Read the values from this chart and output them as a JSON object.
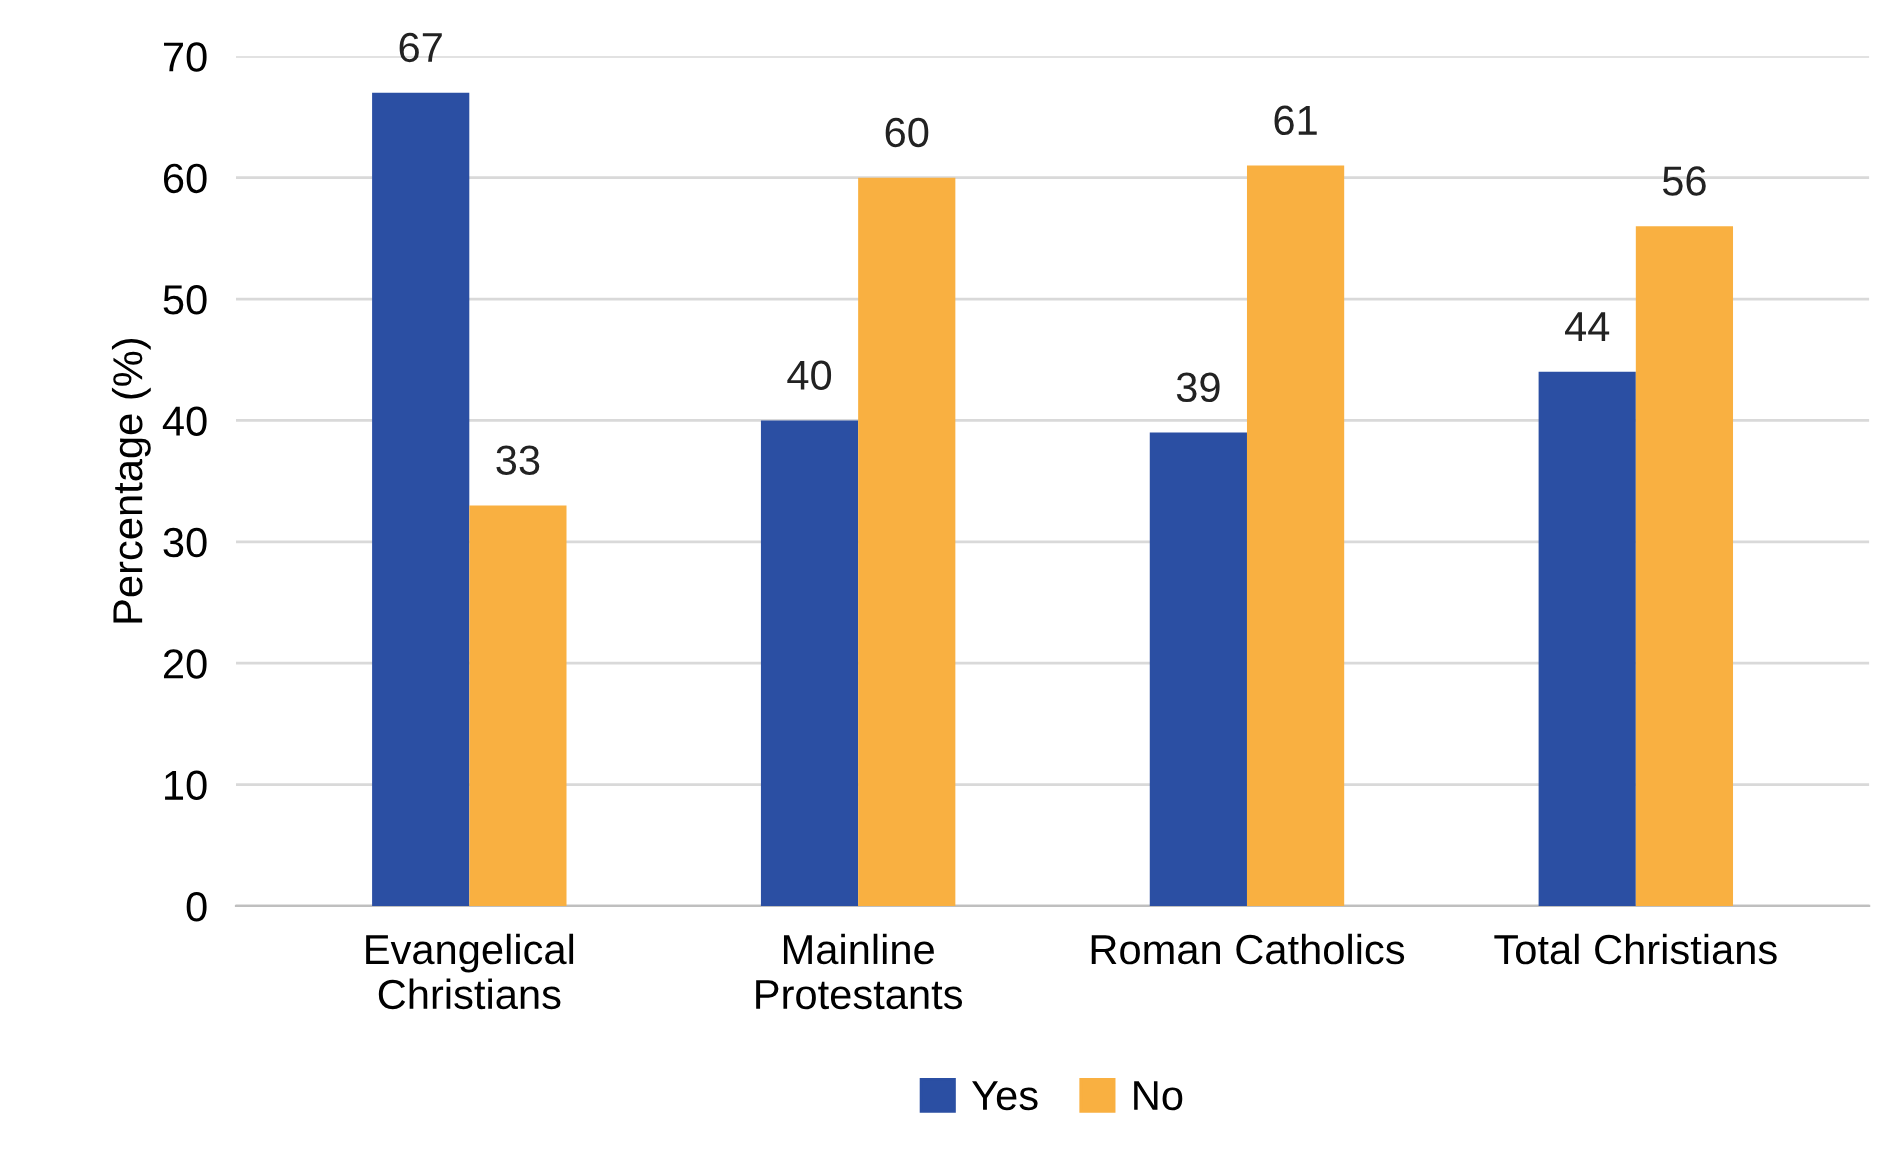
{
  "chart_data": {
    "type": "bar",
    "ylabel": "Percentage (%)",
    "categories": [
      "Evangelical\nChristians",
      "Mainline\nProtestants",
      "Roman Catholics",
      "Total Christians"
    ],
    "series": [
      {
        "name": "Yes",
        "color": "#2b4fa3",
        "values": [
          67,
          40,
          39,
          44
        ]
      },
      {
        "name": "No",
        "color": "#f9b041",
        "values": [
          33,
          60,
          61,
          56
        ]
      }
    ],
    "ylim": [
      0,
      70
    ],
    "yticks": [
      0,
      10,
      20,
      30,
      40,
      50,
      60,
      70
    ],
    "grid": "y",
    "legend": "bottom",
    "data_labels": true
  }
}
